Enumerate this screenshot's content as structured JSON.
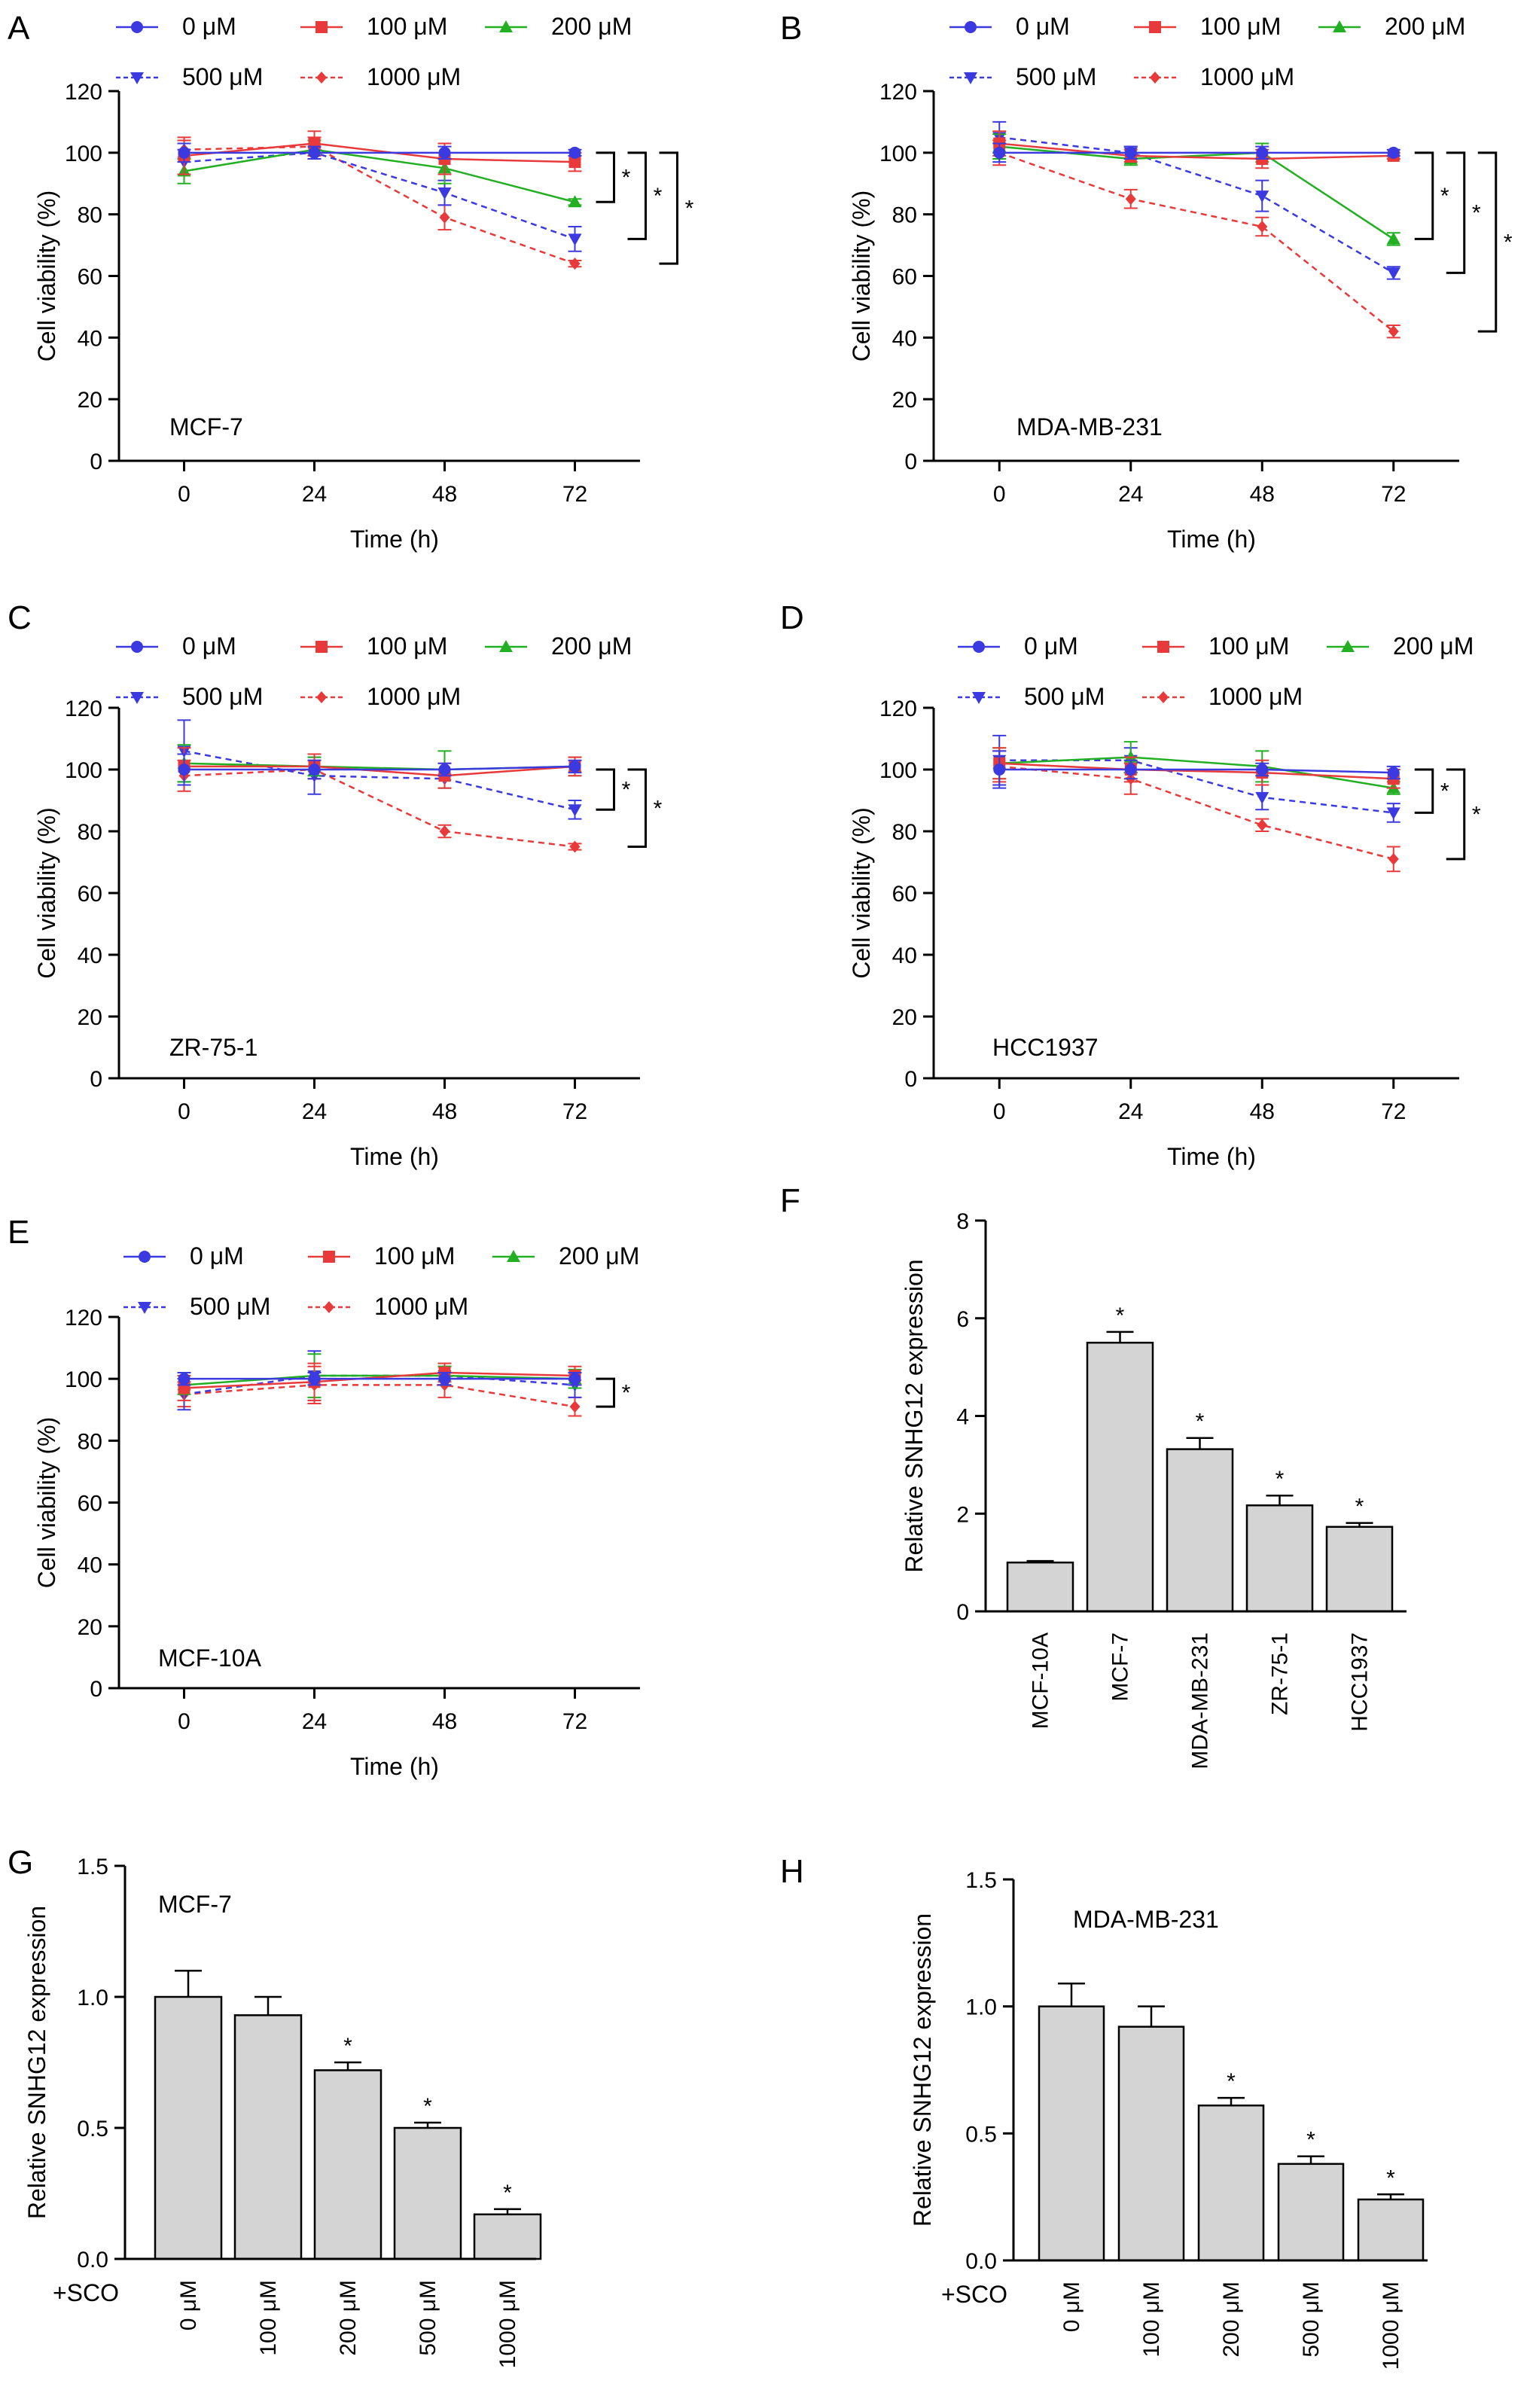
{
  "figure": {
    "legend_labels": [
      "0 μM",
      "100 μM",
      "200 μM",
      "500 μM",
      "1000 μM"
    ],
    "series_colors": [
      "#3a3ae0",
      "#e83a3a",
      "#22b022",
      "#3a3ae0",
      "#e83a3a"
    ],
    "bar_color": "#d4d4d4"
  },
  "chart_data": [
    {
      "panel": "A",
      "type": "line",
      "annotation": "MCF-7",
      "xlabel": "Time (h)",
      "ylabel": "Cell viability (%)",
      "x": [
        0,
        24,
        48,
        72
      ],
      "xlim": [
        -12,
        84
      ],
      "ylim": [
        0,
        120
      ],
      "yticks": [
        0,
        20,
        40,
        60,
        80,
        100,
        120
      ],
      "series": [
        {
          "name": "0 μM",
          "values": [
            100,
            100,
            100,
            100
          ],
          "errors": [
            3,
            2,
            2,
            1
          ]
        },
        {
          "name": "100 μM",
          "values": [
            99,
            103,
            98,
            97
          ],
          "errors": [
            6,
            4,
            5,
            3
          ]
        },
        {
          "name": "200 μM",
          "values": [
            94,
            101,
            95,
            84
          ],
          "errors": [
            4,
            3,
            5,
            1
          ]
        },
        {
          "name": "500 μM",
          "values": [
            97,
            100,
            87,
            72
          ],
          "errors": [
            4,
            2,
            4,
            4
          ]
        },
        {
          "name": "1000 μM",
          "values": [
            101,
            102,
            79,
            64
          ],
          "errors": [
            3,
            3,
            4,
            1
          ]
        }
      ],
      "significance": [
        {
          "label": "*",
          "from": 84,
          "to": 100
        },
        {
          "label": "*",
          "from": 72,
          "to": 100
        },
        {
          "label": "*",
          "from": 64,
          "to": 100
        }
      ]
    },
    {
      "panel": "B",
      "type": "line",
      "annotation": "MDA-MB-231",
      "xlabel": "Time (h)",
      "ylabel": "Cell viability (%)",
      "x": [
        0,
        24,
        48,
        72
      ],
      "xlim": [
        -12,
        84
      ],
      "ylim": [
        0,
        120
      ],
      "yticks": [
        0,
        20,
        40,
        60,
        80,
        100,
        120
      ],
      "series": [
        {
          "name": "0 μM",
          "values": [
            100,
            100,
            100,
            100
          ],
          "errors": [
            3,
            2,
            2,
            1
          ]
        },
        {
          "name": "100 μM",
          "values": [
            103,
            99,
            98,
            99
          ],
          "errors": [
            4,
            2,
            3,
            1
          ]
        },
        {
          "name": "200 μM",
          "values": [
            102,
            98,
            100,
            72
          ],
          "errors": [
            4,
            2,
            3,
            2
          ]
        },
        {
          "name": "500 μM",
          "values": [
            105,
            100,
            86,
            61
          ],
          "errors": [
            5,
            2,
            5,
            2
          ]
        },
        {
          "name": "1000 μM",
          "values": [
            100,
            85,
            76,
            42
          ],
          "errors": [
            4,
            3,
            3,
            2
          ]
        }
      ],
      "significance": [
        {
          "label": "*",
          "from": 72,
          "to": 100
        },
        {
          "label": "*",
          "from": 61,
          "to": 100
        },
        {
          "label": "*",
          "from": 42,
          "to": 100
        }
      ]
    },
    {
      "panel": "C",
      "type": "line",
      "annotation": "ZR-75-1",
      "xlabel": "Time (h)",
      "ylabel": "Cell viability (%)",
      "x": [
        0,
        24,
        48,
        72
      ],
      "xlim": [
        -12,
        84
      ],
      "ylim": [
        0,
        120
      ],
      "yticks": [
        0,
        20,
        40,
        60,
        80,
        100,
        120
      ],
      "series": [
        {
          "name": "0 μM",
          "values": [
            100,
            100,
            100,
            101
          ],
          "errors": [
            5,
            3,
            2,
            2
          ]
        },
        {
          "name": "100 μM",
          "values": [
            101,
            101,
            98,
            101
          ],
          "errors": [
            6,
            4,
            4,
            3
          ]
        },
        {
          "name": "200 μM",
          "values": [
            102,
            101,
            100,
            101
          ],
          "errors": [
            6,
            3,
            6,
            3
          ]
        },
        {
          "name": "500 μM",
          "values": [
            106,
            98,
            97,
            87
          ],
          "errors": [
            10,
            6,
            3,
            3
          ]
        },
        {
          "name": "1000 μM",
          "values": [
            98,
            100,
            80,
            75
          ],
          "errors": [
            5,
            3,
            2,
            1
          ]
        }
      ],
      "significance": [
        {
          "label": "*",
          "from": 87,
          "to": 100
        },
        {
          "label": "*",
          "from": 75,
          "to": 100
        }
      ]
    },
    {
      "panel": "D",
      "type": "line",
      "annotation": "HCC1937",
      "xlabel": "Time (h)",
      "ylabel": "Cell viability (%)",
      "x": [
        0,
        24,
        48,
        72
      ],
      "xlim": [
        -12,
        84
      ],
      "ylim": [
        0,
        120
      ],
      "yticks": [
        0,
        20,
        40,
        60,
        80,
        100,
        120
      ],
      "series": [
        {
          "name": "0 μM",
          "values": [
            100,
            100,
            100,
            99
          ],
          "errors": [
            6,
            3,
            2,
            2
          ]
        },
        {
          "name": "100 μM",
          "values": [
            102,
            100,
            99,
            97
          ],
          "errors": [
            5,
            4,
            4,
            3
          ]
        },
        {
          "name": "200 μM",
          "values": [
            102,
            104,
            101,
            94
          ],
          "errors": [
            5,
            5,
            5,
            2
          ]
        },
        {
          "name": "500 μM",
          "values": [
            103,
            103,
            91,
            86
          ],
          "errors": [
            8,
            4,
            4,
            3
          ]
        },
        {
          "name": "1000 μM",
          "values": [
            101,
            97,
            82,
            71
          ],
          "errors": [
            5,
            5,
            2,
            4
          ]
        }
      ],
      "significance": [
        {
          "label": "*",
          "from": 86,
          "to": 100
        },
        {
          "label": "*",
          "from": 71,
          "to": 100
        }
      ]
    },
    {
      "panel": "E",
      "type": "line",
      "annotation": "MCF-10A",
      "xlabel": "Time (h)",
      "ylabel": "Cell viability (%)",
      "x": [
        0,
        24,
        48,
        72
      ],
      "xlim": [
        -12,
        84
      ],
      "ylim": [
        0,
        120
      ],
      "yticks": [
        0,
        20,
        40,
        60,
        80,
        100,
        120
      ],
      "series": [
        {
          "name": "0 μM",
          "values": [
            100,
            100,
            100,
            100
          ],
          "errors": [
            2,
            2,
            2,
            2
          ]
        },
        {
          "name": "100 μM",
          "values": [
            97,
            99,
            102,
            101
          ],
          "errors": [
            4,
            6,
            3,
            3
          ]
        },
        {
          "name": "200 μM",
          "values": [
            98,
            101,
            101,
            100
          ],
          "errors": [
            3,
            7,
            3,
            3
          ]
        },
        {
          "name": "500 μM",
          "values": [
            95,
            101,
            101,
            98
          ],
          "errors": [
            5,
            8,
            3,
            4
          ]
        },
        {
          "name": "1000 μM",
          "values": [
            95,
            98,
            98,
            91
          ],
          "errors": [
            4,
            6,
            4,
            3
          ]
        }
      ],
      "significance": [
        {
          "label": "*",
          "from": 91,
          "to": 100
        }
      ]
    },
    {
      "panel": "F",
      "type": "bar",
      "ylabel": "Relative SNHG12 expression",
      "categories": [
        "MCF-10A",
        "MCF-7",
        "MDA-MB-231",
        "ZR-75-1",
        "HCC1937"
      ],
      "values": [
        1.0,
        5.5,
        3.32,
        2.17,
        1.73
      ],
      "errors": [
        0.03,
        0.22,
        0.23,
        0.2,
        0.08
      ],
      "markers": [
        "",
        "*",
        "*",
        "*",
        "*"
      ],
      "ylim": [
        0,
        8
      ],
      "yticks": [
        0,
        2,
        4,
        6,
        8
      ]
    },
    {
      "panel": "G",
      "type": "bar",
      "annotation": "MCF-7",
      "ylabel": "Relative SNHG12 expression",
      "group_label": "+SCO",
      "categories": [
        "0 μM",
        "100 μM",
        "200 μM",
        "500 μM",
        "1000 μM"
      ],
      "values": [
        1.0,
        0.93,
        0.72,
        0.5,
        0.17
      ],
      "errors": [
        0.1,
        0.07,
        0.03,
        0.02,
        0.02
      ],
      "markers": [
        "",
        "",
        "*",
        "*",
        "*"
      ],
      "ylim": [
        0,
        1.5
      ],
      "yticks": [
        0.0,
        0.5,
        1.0,
        1.5
      ],
      "ytick_labels": [
        "0.0",
        "0.5",
        "1.0",
        "1.5"
      ]
    },
    {
      "panel": "H",
      "type": "bar",
      "annotation": "MDA-MB-231",
      "ylabel": "Relative SNHG12 expression",
      "group_label": "+SCO",
      "categories": [
        "0 μM",
        "100 μM",
        "200 μM",
        "500 μM",
        "1000 μM"
      ],
      "values": [
        1.0,
        0.92,
        0.61,
        0.38,
        0.24
      ],
      "errors": [
        0.09,
        0.08,
        0.03,
        0.03,
        0.02
      ],
      "markers": [
        "",
        "",
        "*",
        "*",
        "*"
      ],
      "ylim": [
        0,
        1.5
      ],
      "yticks": [
        0.0,
        0.5,
        1.0,
        1.5
      ],
      "ytick_labels": [
        "0.0",
        "0.5",
        "1.0",
        "1.5"
      ]
    }
  ]
}
